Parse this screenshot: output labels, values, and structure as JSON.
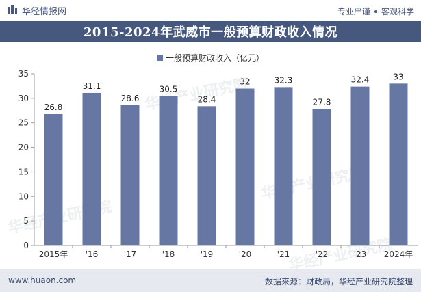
{
  "header": {
    "brand": "华经情报网",
    "tagline_left": "专业严谨",
    "tagline_right": "客观科学"
  },
  "watermark": "华经产业研究院",
  "colors": {
    "bar": "#6677a3",
    "title_bg": "#47587f"
  },
  "chart_data": {
    "type": "bar",
    "title": "2015-2024年武威市一般预算财政收入情况",
    "categories": [
      "2015年",
      "'16",
      "'17",
      "'18",
      "'19",
      "'20",
      "'21",
      "'22",
      "'23",
      "2024年"
    ],
    "series": [
      {
        "name": "一般预算财政收入（亿元）",
        "values": [
          26.8,
          31.1,
          28.6,
          30.5,
          28.4,
          32,
          32.3,
          27.8,
          32.4,
          33
        ]
      }
    ],
    "ylim": [
      0,
      35
    ],
    "yticks": [
      0,
      5,
      10,
      15,
      20,
      25,
      30,
      35
    ],
    "legend_position": "top-center",
    "grid": false
  },
  "footer": {
    "website": "www.huaon.com",
    "source": "数据来源：财政局，华经产业研究院整理"
  }
}
